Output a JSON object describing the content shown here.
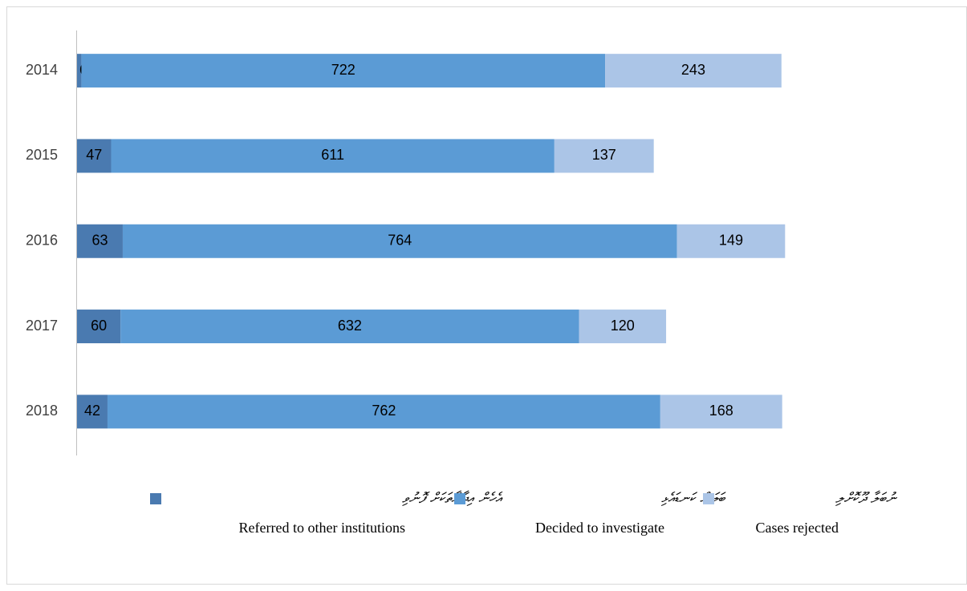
{
  "chart_data": {
    "type": "stacked-bar-horizontal",
    "categories": [
      "2014",
      "2015",
      "2016",
      "2017",
      "2018"
    ],
    "series": [
      {
        "name": "Referred to other institutions",
        "name_dv": "އެހެން އިދާރާތަކަށް ފޮނުވި",
        "color": "#4a7ab0",
        "values": [
          6,
          47,
          63,
          60,
          42
        ]
      },
      {
        "name": "Decided to investigate",
        "name_dv": "ބަލަން ކަނޑައެޅި",
        "color": "#5b9bd5",
        "values": [
          722,
          611,
          764,
          632,
          762
        ]
      },
      {
        "name": "Cases rejected",
        "name_dv": "ނުބަލާ ދޫކޮށްލި",
        "color": "#abc5e7",
        "values": [
          243,
          137,
          149,
          120,
          168
        ]
      }
    ],
    "xlim": [
      0,
      1000
    ],
    "legend": "bottom"
  }
}
